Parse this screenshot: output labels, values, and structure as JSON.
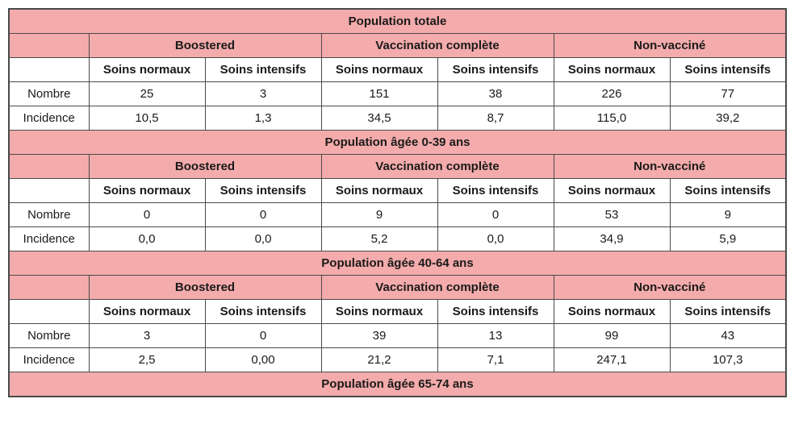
{
  "header": {
    "group_labels": [
      "Boostered",
      "Vaccination complète",
      "Non-vacciné"
    ],
    "care_labels": [
      "Soins normaux",
      "Soins intensifs"
    ]
  },
  "row_labels": {
    "nombre": "Nombre",
    "incidence": "Incidence"
  },
  "sections": [
    {
      "title": "Population totale",
      "nombre": [
        "25",
        "3",
        "151",
        "38",
        "226",
        "77"
      ],
      "incidence": [
        "10,5",
        "1,3",
        "34,5",
        "8,7",
        "115,0",
        "39,2"
      ]
    },
    {
      "title": "Population âgée 0-39 ans",
      "nombre": [
        "0",
        "0",
        "9",
        "0",
        "53",
        "9"
      ],
      "incidence": [
        "0,0",
        "0,0",
        "5,2",
        "0,0",
        "34,9",
        "5,9"
      ]
    },
    {
      "title": "Population âgée 40-64 ans",
      "nombre": [
        "3",
        "0",
        "39",
        "13",
        "99",
        "43"
      ],
      "incidence": [
        "2,5",
        "0,00",
        "21,2",
        "7,1",
        "247,1",
        "107,3"
      ]
    },
    {
      "title": "Population âgée 65-74 ans"
    }
  ],
  "colors": {
    "header_fill": "#f4abab",
    "border": "#4a4a4a",
    "text": "#1a1a1a",
    "background": "#ffffff"
  },
  "chart_data": {
    "type": "table",
    "title": "Hospitalisation par statut vaccinal (Nombre / Incidence)",
    "column_groups": [
      "Boostered",
      "Vaccination complète",
      "Non-vacciné"
    ],
    "sub_columns": [
      "Soins normaux",
      "Soins intensifs"
    ],
    "row_headers": [
      "Nombre",
      "Incidence"
    ],
    "decimal_separator": ",",
    "sections": [
      {
        "title": "Population totale",
        "nombre": [
          25,
          3,
          151,
          38,
          226,
          77
        ],
        "incidence": [
          10.5,
          1.3,
          34.5,
          8.7,
          115.0,
          39.2
        ]
      },
      {
        "title": "Population âgée 0-39 ans",
        "nombre": [
          0,
          0,
          9,
          0,
          53,
          9
        ],
        "incidence": [
          0.0,
          0.0,
          5.2,
          0.0,
          34.9,
          5.9
        ]
      },
      {
        "title": "Population âgée 40-64 ans",
        "nombre": [
          3,
          0,
          39,
          13,
          99,
          43
        ],
        "incidence": [
          2.5,
          0.0,
          21.2,
          7.1,
          247.1,
          107.3
        ]
      },
      {
        "title": "Population âgée 65-74 ans",
        "nombre": [],
        "incidence": [],
        "note_visible_content": "header row only, rest cut off at bottom of image"
      }
    ]
  }
}
